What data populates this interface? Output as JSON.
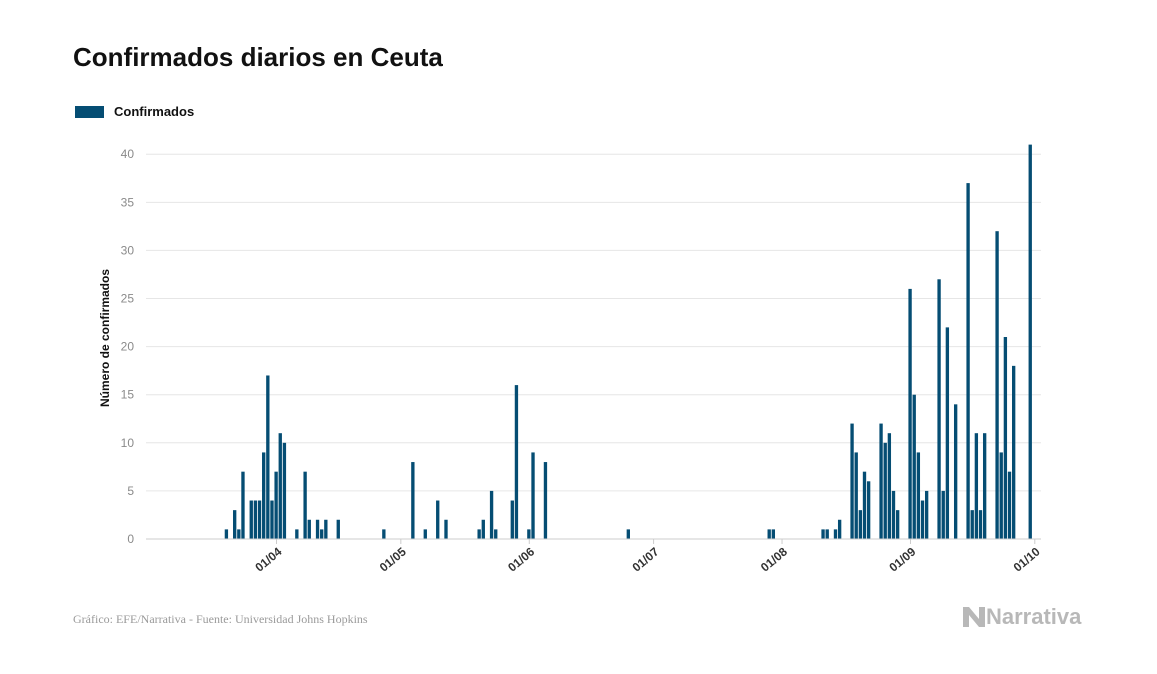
{
  "header": {
    "title": "Confirmados diarios en Ceuta"
  },
  "footer": {
    "source": "Gráfico: EFE/Narrativa - Fuente: Universidad Johns Hopkins",
    "brand": "Narrativa"
  },
  "colors": {
    "bar": "#054d73",
    "grid": "#e6e6e6",
    "axis": "#cccccc"
  },
  "chart_data": {
    "type": "bar",
    "ylabel": "Número de confirmados",
    "ylim": [
      0,
      42
    ],
    "yticks": [
      0,
      5,
      10,
      15,
      20,
      25,
      30,
      35,
      40
    ],
    "x_start": "2020-03-01",
    "x_end": "2020-10-03",
    "xticks": [
      {
        "date": "2020-04-01",
        "label": "01/04"
      },
      {
        "date": "2020-05-01",
        "label": "01/05"
      },
      {
        "date": "2020-06-01",
        "label": "01/06"
      },
      {
        "date": "2020-07-01",
        "label": "01/07"
      },
      {
        "date": "2020-08-01",
        "label": "01/08"
      },
      {
        "date": "2020-09-01",
        "label": "01/09"
      },
      {
        "date": "2020-10-01",
        "label": "01/10"
      }
    ],
    "grid": true,
    "legend": "top-left",
    "series": [
      {
        "name": "Confirmados",
        "points": [
          {
            "x": "2020-03-20",
            "y": 1
          },
          {
            "x": "2020-03-22",
            "y": 3
          },
          {
            "x": "2020-03-23",
            "y": 1
          },
          {
            "x": "2020-03-24",
            "y": 7
          },
          {
            "x": "2020-03-26",
            "y": 4
          },
          {
            "x": "2020-03-27",
            "y": 4
          },
          {
            "x": "2020-03-28",
            "y": 4
          },
          {
            "x": "2020-03-29",
            "y": 9
          },
          {
            "x": "2020-03-30",
            "y": 17
          },
          {
            "x": "2020-03-31",
            "y": 4
          },
          {
            "x": "2020-04-01",
            "y": 7
          },
          {
            "x": "2020-04-02",
            "y": 11
          },
          {
            "x": "2020-04-03",
            "y": 10
          },
          {
            "x": "2020-04-06",
            "y": 1
          },
          {
            "x": "2020-04-08",
            "y": 7
          },
          {
            "x": "2020-04-09",
            "y": 2
          },
          {
            "x": "2020-04-11",
            "y": 2
          },
          {
            "x": "2020-04-12",
            "y": 1
          },
          {
            "x": "2020-04-13",
            "y": 2
          },
          {
            "x": "2020-04-16",
            "y": 2
          },
          {
            "x": "2020-04-27",
            "y": 1
          },
          {
            "x": "2020-05-04",
            "y": 8
          },
          {
            "x": "2020-05-07",
            "y": 1
          },
          {
            "x": "2020-05-10",
            "y": 4
          },
          {
            "x": "2020-05-12",
            "y": 2
          },
          {
            "x": "2020-05-20",
            "y": 1
          },
          {
            "x": "2020-05-21",
            "y": 2
          },
          {
            "x": "2020-05-23",
            "y": 5
          },
          {
            "x": "2020-05-24",
            "y": 1
          },
          {
            "x": "2020-05-28",
            "y": 4
          },
          {
            "x": "2020-05-29",
            "y": 16
          },
          {
            "x": "2020-06-01",
            "y": 1
          },
          {
            "x": "2020-06-02",
            "y": 9
          },
          {
            "x": "2020-06-05",
            "y": 8
          },
          {
            "x": "2020-06-25",
            "y": 1
          },
          {
            "x": "2020-07-29",
            "y": 1
          },
          {
            "x": "2020-07-30",
            "y": 1
          },
          {
            "x": "2020-08-11",
            "y": 1
          },
          {
            "x": "2020-08-12",
            "y": 1
          },
          {
            "x": "2020-08-14",
            "y": 1
          },
          {
            "x": "2020-08-15",
            "y": 2
          },
          {
            "x": "2020-08-18",
            "y": 12
          },
          {
            "x": "2020-08-19",
            "y": 9
          },
          {
            "x": "2020-08-20",
            "y": 3
          },
          {
            "x": "2020-08-21",
            "y": 7
          },
          {
            "x": "2020-08-22",
            "y": 6
          },
          {
            "x": "2020-08-25",
            "y": 12
          },
          {
            "x": "2020-08-26",
            "y": 10
          },
          {
            "x": "2020-08-27",
            "y": 11
          },
          {
            "x": "2020-08-28",
            "y": 5
          },
          {
            "x": "2020-08-29",
            "y": 3
          },
          {
            "x": "2020-09-01",
            "y": 26
          },
          {
            "x": "2020-09-02",
            "y": 15
          },
          {
            "x": "2020-09-03",
            "y": 9
          },
          {
            "x": "2020-09-04",
            "y": 4
          },
          {
            "x": "2020-09-05",
            "y": 5
          },
          {
            "x": "2020-09-08",
            "y": 27
          },
          {
            "x": "2020-09-09",
            "y": 5
          },
          {
            "x": "2020-09-10",
            "y": 22
          },
          {
            "x": "2020-09-12",
            "y": 14
          },
          {
            "x": "2020-09-15",
            "y": 37
          },
          {
            "x": "2020-09-16",
            "y": 3
          },
          {
            "x": "2020-09-17",
            "y": 11
          },
          {
            "x": "2020-09-18",
            "y": 3
          },
          {
            "x": "2020-09-19",
            "y": 11
          },
          {
            "x": "2020-09-22",
            "y": 32
          },
          {
            "x": "2020-09-23",
            "y": 9
          },
          {
            "x": "2020-09-24",
            "y": 21
          },
          {
            "x": "2020-09-25",
            "y": 7
          },
          {
            "x": "2020-09-26",
            "y": 18
          },
          {
            "x": "2020-09-30",
            "y": 41
          }
        ]
      }
    ]
  }
}
